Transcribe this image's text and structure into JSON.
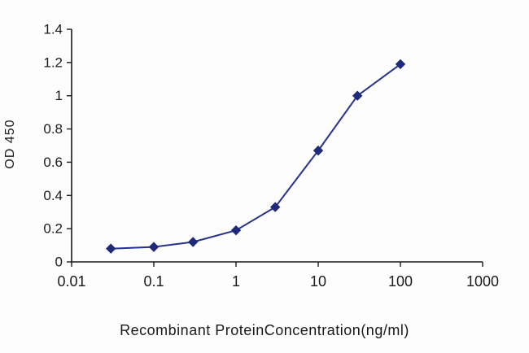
{
  "chart_data": {
    "type": "line",
    "title": "",
    "xlabel": "Recombinant ProteinConcentration(ng/ml)",
    "ylabel": "OD 450",
    "x_scale": "log",
    "x": [
      0.03,
      0.1,
      0.3,
      1,
      3,
      10,
      30,
      100
    ],
    "y": [
      0.08,
      0.09,
      0.12,
      0.19,
      0.33,
      0.67,
      1.0,
      1.19
    ],
    "xlim": [
      0.01,
      1000
    ],
    "ylim": [
      0,
      1.4
    ],
    "x_tick_labels": [
      "0.01",
      "0.1",
      "1",
      "10",
      "100",
      "1000"
    ],
    "y_tick_labels": [
      "0",
      "0.2",
      "0.4",
      "0.6",
      "0.8",
      "1",
      "1.2",
      "1.4"
    ],
    "line_color": "#26338c",
    "marker_color": "#1f2a7a",
    "marker_shape": "diamond",
    "axis_color": "#1a1a1a",
    "grid": "off",
    "legend": "none"
  }
}
